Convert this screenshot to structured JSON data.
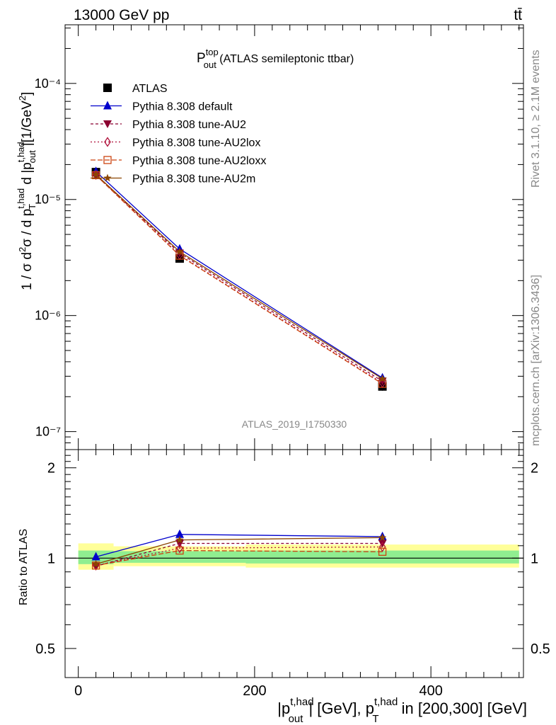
{
  "header": {
    "left": "13000 GeV pp",
    "right": "tt̄"
  },
  "title": {
    "main": "P",
    "sup": "top",
    "sub": "out",
    "rest": " (ATLAS semileptonic ttbar)"
  },
  "analysis_id": "ATLAS_2019_I1750330",
  "side_labels": {
    "rivet": "Rivet 3.1.10, ≥ 2.1M events",
    "mcplots": "mcplots.cern.ch [arXiv:1306.3436]"
  },
  "y_axis_label": "1 / σ d²σ / d p_T^{t,had} d |p_out^{t,had}| [1/GeV²]",
  "ratio_axis_label": "Ratio to ATLAS",
  "x_axis_label": "|p_out^{t,had}| [GeV], p_T^{t,had} in [200,300] [GeV]",
  "upper_ticks": [
    "10⁻⁴",
    "10⁻⁵",
    "10⁻⁶",
    "10⁻⁷"
  ],
  "ratio_ticks": [
    "2",
    "1",
    "0.5"
  ],
  "x_ticks": [
    "0",
    "200",
    "400"
  ],
  "colors": {
    "atlas": "#000000",
    "default": "#0000cc",
    "au2": "#8b0030",
    "au2lox": "#b0103a",
    "au2loxx": "#cc4411",
    "au2m": "#8b4500",
    "band_inner": "#90ee90",
    "band_outer": "#ffff99"
  },
  "chart_data": [
    {
      "type": "scatter",
      "panel": "main",
      "yscale": "log",
      "xlim": [
        -15,
        505
      ],
      "ylim": [
        7e-08,
        0.00032
      ],
      "x": [
        20,
        115,
        345
      ],
      "x_bins": [
        [
          0,
          40
        ],
        [
          40,
          190
        ],
        [
          190,
          500
        ]
      ],
      "series": [
        {
          "name": "ATLAS",
          "key": "atlas",
          "values": [
            1.72e-05,
            3.1e-06,
            2.45e-07
          ],
          "errors": [
            1.2e-06,
            2e-07,
            2e-08
          ]
        },
        {
          "name": "Pythia 8.308 default",
          "key": "default",
          "values": [
            1.74e-05,
            3.75e-06,
            2.9e-07
          ]
        },
        {
          "name": "Pythia 8.308 tune-AU2",
          "key": "au2",
          "values": [
            1.62e-05,
            3.45e-06,
            2.72e-07
          ]
        },
        {
          "name": "Pythia 8.308 tune-AU2lox",
          "key": "au2lox",
          "values": [
            1.63e-05,
            3.32e-06,
            2.62e-07
          ]
        },
        {
          "name": "Pythia 8.308 tune-AU2loxx",
          "key": "au2loxx",
          "values": [
            1.62e-05,
            3.28e-06,
            2.58e-07
          ]
        },
        {
          "name": "Pythia 8.308 tune-AU2m",
          "key": "au2m",
          "values": [
            1.64e-05,
            3.55e-06,
            2.85e-07
          ]
        }
      ]
    },
    {
      "type": "line",
      "panel": "ratio",
      "ylabel": "Ratio to ATLAS",
      "yscale": "log",
      "ylim": [
        0.4,
        2.3
      ],
      "x": [
        20,
        115,
        345
      ],
      "band_inner": [
        [
          0,
          40,
          0.955,
          1.06
        ],
        [
          40,
          190,
          0.965,
          1.055
        ],
        [
          190,
          500,
          0.96,
          1.06
        ]
      ],
      "band_outer": [
        [
          0,
          40,
          0.915,
          1.12
        ],
        [
          40,
          190,
          0.94,
          1.095
        ],
        [
          190,
          500,
          0.93,
          1.11
        ]
      ],
      "series": [
        {
          "name": "Pythia 8.308 default",
          "key": "default",
          "values": [
            1.01,
            1.2,
            1.18
          ]
        },
        {
          "name": "Pythia 8.308 tune-AU2",
          "key": "au2",
          "values": [
            0.94,
            1.12,
            1.12
          ]
        },
        {
          "name": "Pythia 8.308 tune-AU2lox",
          "key": "au2lox",
          "values": [
            0.945,
            1.08,
            1.09
          ]
        },
        {
          "name": "Pythia 8.308 tune-AU2loxx",
          "key": "au2loxx",
          "values": [
            0.945,
            1.06,
            1.05
          ]
        },
        {
          "name": "Pythia 8.308 tune-AU2m",
          "key": "au2m",
          "values": [
            0.955,
            1.15,
            1.17
          ]
        }
      ]
    }
  ]
}
